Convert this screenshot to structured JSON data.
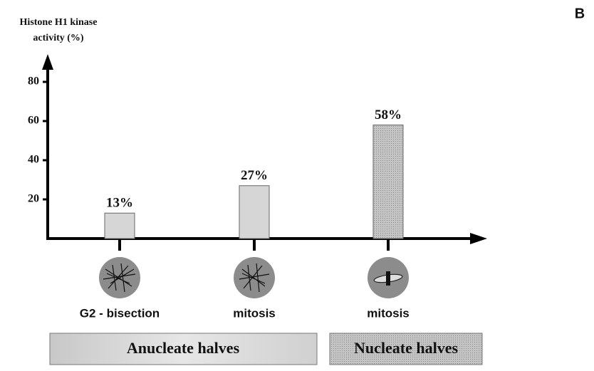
{
  "chart_data": {
    "type": "bar",
    "panel_label": "B",
    "ylabel": [
      "Histone H1 kinase",
      "activity (%)"
    ],
    "categories": [
      "G2 - bisection",
      "mitosis",
      "mitosis"
    ],
    "values": [
      13,
      27,
      58
    ],
    "value_labels": [
      "13%",
      "27%",
      "58%"
    ],
    "colors": [
      "#d6d6d6",
      "#d6d6d6",
      "#b9b9b9"
    ],
    "ylim": [
      0,
      90
    ],
    "yticks": [
      20,
      40,
      60,
      80
    ],
    "groups": [
      "Anucleate halves",
      "Nucleate halves"
    ]
  }
}
